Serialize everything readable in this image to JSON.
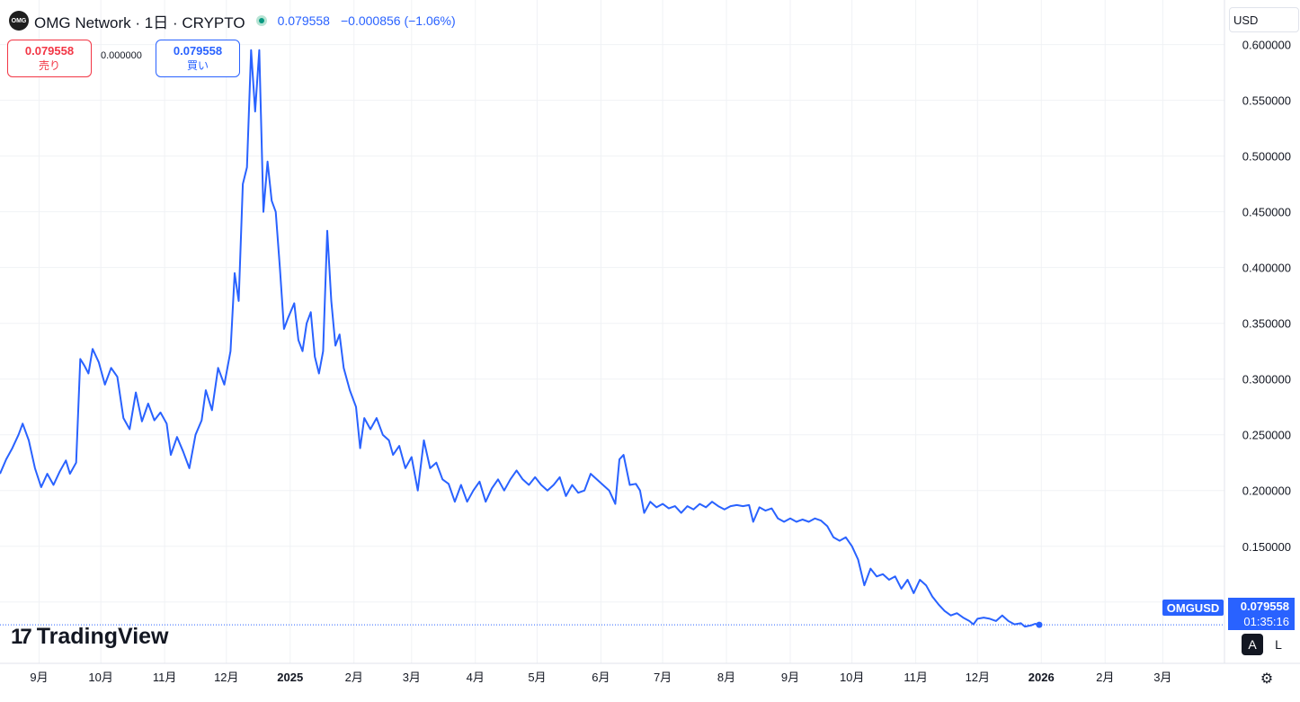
{
  "header": {
    "logo_text": "OMG",
    "title": "OMG Network · 1日 · CRYPTO",
    "last_price": "0.079558",
    "change": "−0.000856 (−1.06%)"
  },
  "trade": {
    "sell_price": "0.079558",
    "sell_label": "売り",
    "buy_price": "0.079558",
    "buy_label": "買い",
    "spread": "0.000000"
  },
  "currency": "USD",
  "price_label": {
    "symbol": "OMGUSD",
    "value": "0.079558",
    "countdown": "01:35:16"
  },
  "logo": {
    "mark": "17",
    "text": "TradingView"
  },
  "axis_buttons": {
    "a": "A",
    "l": "L"
  },
  "colors": {
    "line": "#2962ff",
    "grid": "#f0f2f5",
    "sell": "#f23645",
    "buy": "#2962ff"
  },
  "chart_data": {
    "type": "line",
    "series": [
      {
        "name": "OMGUSD",
        "points": [
          [
            "2024-08-13",
            0.215
          ],
          [
            "2024-08-16",
            0.228
          ],
          [
            "2024-08-19",
            0.238
          ],
          [
            "2024-08-22",
            0.25
          ],
          [
            "2024-08-24",
            0.26
          ],
          [
            "2024-08-27",
            0.245
          ],
          [
            "2024-08-30",
            0.22
          ],
          [
            "2024-09-02",
            0.203
          ],
          [
            "2024-09-05",
            0.215
          ],
          [
            "2024-09-08",
            0.205
          ],
          [
            "2024-09-11",
            0.217
          ],
          [
            "2024-09-14",
            0.227
          ],
          [
            "2024-09-16",
            0.215
          ],
          [
            "2024-09-19",
            0.225
          ],
          [
            "2024-09-21",
            0.318
          ],
          [
            "2024-09-23",
            0.312
          ],
          [
            "2024-09-25",
            0.305
          ],
          [
            "2024-09-27",
            0.327
          ],
          [
            "2024-09-30",
            0.315
          ],
          [
            "2024-10-03",
            0.295
          ],
          [
            "2024-10-06",
            0.31
          ],
          [
            "2024-10-09",
            0.302
          ],
          [
            "2024-10-12",
            0.265
          ],
          [
            "2024-10-15",
            0.255
          ],
          [
            "2024-10-18",
            0.288
          ],
          [
            "2024-10-21",
            0.262
          ],
          [
            "2024-10-24",
            0.278
          ],
          [
            "2024-10-27",
            0.263
          ],
          [
            "2024-10-30",
            0.27
          ],
          [
            "2024-11-02",
            0.26
          ],
          [
            "2024-11-04",
            0.232
          ],
          [
            "2024-11-07",
            0.248
          ],
          [
            "2024-11-10",
            0.235
          ],
          [
            "2024-11-13",
            0.22
          ],
          [
            "2024-11-16",
            0.25
          ],
          [
            "2024-11-19",
            0.263
          ],
          [
            "2024-11-21",
            0.29
          ],
          [
            "2024-11-24",
            0.272
          ],
          [
            "2024-11-27",
            0.31
          ],
          [
            "2024-11-30",
            0.295
          ],
          [
            "2024-12-03",
            0.325
          ],
          [
            "2024-12-05",
            0.395
          ],
          [
            "2024-12-07",
            0.37
          ],
          [
            "2024-12-09",
            0.475
          ],
          [
            "2024-12-11",
            0.49
          ],
          [
            "2024-12-13",
            0.595
          ],
          [
            "2024-12-15",
            0.54
          ],
          [
            "2024-12-17",
            0.595
          ],
          [
            "2024-12-19",
            0.45
          ],
          [
            "2024-12-21",
            0.495
          ],
          [
            "2024-12-23",
            0.46
          ],
          [
            "2024-12-25",
            0.45
          ],
          [
            "2024-12-27",
            0.4
          ],
          [
            "2024-12-29",
            0.345
          ],
          [
            "2024-12-31",
            0.355
          ],
          [
            "2025-01-03",
            0.368
          ],
          [
            "2025-01-05",
            0.335
          ],
          [
            "2025-01-07",
            0.325
          ],
          [
            "2025-01-09",
            0.35
          ],
          [
            "2025-01-11",
            0.36
          ],
          [
            "2025-01-13",
            0.32
          ],
          [
            "2025-01-15",
            0.305
          ],
          [
            "2025-01-17",
            0.325
          ],
          [
            "2025-01-19",
            0.433
          ],
          [
            "2025-01-21",
            0.37
          ],
          [
            "2025-01-23",
            0.33
          ],
          [
            "2025-01-25",
            0.34
          ],
          [
            "2025-01-27",
            0.31
          ],
          [
            "2025-01-30",
            0.29
          ],
          [
            "2025-02-02",
            0.275
          ],
          [
            "2025-02-04",
            0.238
          ],
          [
            "2025-02-06",
            0.265
          ],
          [
            "2025-02-09",
            0.255
          ],
          [
            "2025-02-12",
            0.265
          ],
          [
            "2025-02-15",
            0.25
          ],
          [
            "2025-02-18",
            0.245
          ],
          [
            "2025-02-20",
            0.232
          ],
          [
            "2025-02-23",
            0.24
          ],
          [
            "2025-02-26",
            0.22
          ],
          [
            "2025-03-01",
            0.23
          ],
          [
            "2025-03-04",
            0.2
          ],
          [
            "2025-03-07",
            0.245
          ],
          [
            "2025-03-10",
            0.22
          ],
          [
            "2025-03-13",
            0.225
          ],
          [
            "2025-03-16",
            0.21
          ],
          [
            "2025-03-19",
            0.206
          ],
          [
            "2025-03-22",
            0.19
          ],
          [
            "2025-03-25",
            0.205
          ],
          [
            "2025-03-28",
            0.19
          ],
          [
            "2025-03-31",
            0.2
          ],
          [
            "2025-04-03",
            0.208
          ],
          [
            "2025-04-06",
            0.19
          ],
          [
            "2025-04-09",
            0.202
          ],
          [
            "2025-04-12",
            0.21
          ],
          [
            "2025-04-15",
            0.2
          ],
          [
            "2025-04-18",
            0.21
          ],
          [
            "2025-04-21",
            0.218
          ],
          [
            "2025-04-24",
            0.21
          ],
          [
            "2025-04-27",
            0.205
          ],
          [
            "2025-04-30",
            0.212
          ],
          [
            "2025-05-03",
            0.205
          ],
          [
            "2025-05-06",
            0.2
          ],
          [
            "2025-05-09",
            0.205
          ],
          [
            "2025-05-12",
            0.212
          ],
          [
            "2025-05-15",
            0.195
          ],
          [
            "2025-05-18",
            0.205
          ],
          [
            "2025-05-21",
            0.198
          ],
          [
            "2025-05-24",
            0.2
          ],
          [
            "2025-05-27",
            0.215
          ],
          [
            "2025-05-30",
            0.21
          ],
          [
            "2025-06-02",
            0.205
          ],
          [
            "2025-06-05",
            0.2
          ],
          [
            "2025-06-08",
            0.188
          ],
          [
            "2025-06-10",
            0.228
          ],
          [
            "2025-06-12",
            0.232
          ],
          [
            "2025-06-15",
            0.205
          ],
          [
            "2025-06-18",
            0.206
          ],
          [
            "2025-06-20",
            0.2
          ],
          [
            "2025-06-22",
            0.18
          ],
          [
            "2025-06-25",
            0.19
          ],
          [
            "2025-06-28",
            0.185
          ],
          [
            "2025-07-01",
            0.188
          ],
          [
            "2025-07-04",
            0.184
          ],
          [
            "2025-07-07",
            0.186
          ],
          [
            "2025-07-10",
            0.18
          ],
          [
            "2025-07-13",
            0.186
          ],
          [
            "2025-07-16",
            0.183
          ],
          [
            "2025-07-19",
            0.188
          ],
          [
            "2025-07-22",
            0.185
          ],
          [
            "2025-07-25",
            0.19
          ],
          [
            "2025-07-28",
            0.186
          ],
          [
            "2025-07-31",
            0.183
          ],
          [
            "2025-08-03",
            0.186
          ],
          [
            "2025-08-06",
            0.187
          ],
          [
            "2025-08-09",
            0.186
          ],
          [
            "2025-08-12",
            0.187
          ],
          [
            "2025-08-14",
            0.172
          ],
          [
            "2025-08-17",
            0.185
          ],
          [
            "2025-08-20",
            0.182
          ],
          [
            "2025-08-23",
            0.184
          ],
          [
            "2025-08-26",
            0.175
          ],
          [
            "2025-08-29",
            0.172
          ],
          [
            "2025-09-01",
            0.175
          ],
          [
            "2025-09-04",
            0.172
          ],
          [
            "2025-09-07",
            0.174
          ],
          [
            "2025-09-10",
            0.172
          ],
          [
            "2025-09-13",
            0.175
          ],
          [
            "2025-09-16",
            0.173
          ],
          [
            "2025-09-19",
            0.168
          ],
          [
            "2025-09-22",
            0.158
          ],
          [
            "2025-09-25",
            0.155
          ],
          [
            "2025-09-28",
            0.158
          ],
          [
            "2025-10-01",
            0.15
          ],
          [
            "2025-10-04",
            0.138
          ],
          [
            "2025-10-07",
            0.115
          ],
          [
            "2025-10-10",
            0.13
          ],
          [
            "2025-10-13",
            0.123
          ],
          [
            "2025-10-16",
            0.125
          ],
          [
            "2025-10-19",
            0.12
          ],
          [
            "2025-10-22",
            0.123
          ],
          [
            "2025-10-25",
            0.112
          ],
          [
            "2025-10-28",
            0.12
          ],
          [
            "2025-10-31",
            0.108
          ],
          [
            "2025-11-03",
            0.12
          ],
          [
            "2025-11-06",
            0.115
          ],
          [
            "2025-11-09",
            0.105
          ],
          [
            "2025-11-12",
            0.098
          ],
          [
            "2025-11-15",
            0.092
          ],
          [
            "2025-11-18",
            0.088
          ],
          [
            "2025-11-21",
            0.09
          ],
          [
            "2025-11-24",
            0.086
          ],
          [
            "2025-11-27",
            0.083
          ],
          [
            "2025-11-29",
            0.08
          ],
          [
            "2025-12-01",
            0.085
          ],
          [
            "2025-12-04",
            0.086
          ],
          [
            "2025-12-07",
            0.085
          ],
          [
            "2025-12-10",
            0.083
          ],
          [
            "2025-12-13",
            0.088
          ],
          [
            "2025-12-16",
            0.083
          ],
          [
            "2025-12-19",
            0.08
          ],
          [
            "2025-12-22",
            0.081
          ],
          [
            "2025-12-24",
            0.078
          ],
          [
            "2025-12-27",
            0.079
          ],
          [
            "2025-12-29",
            0.0805
          ],
          [
            "2025-12-31",
            0.079558
          ]
        ]
      }
    ],
    "x_ticks": [
      "9月",
      "10月",
      "11月",
      "12月",
      "2025",
      "2月",
      "3月",
      "4月",
      "5月",
      "6月",
      "7月",
      "8月",
      "9月",
      "10月",
      "11月",
      "12月",
      "2026",
      "2月",
      "3月"
    ],
    "x_tick_dates": [
      "2024-09-01",
      "2024-10-01",
      "2024-11-01",
      "2024-12-01",
      "2025-01-01",
      "2025-02-01",
      "2025-03-01",
      "2025-04-01",
      "2025-05-01",
      "2025-06-01",
      "2025-07-01",
      "2025-08-01",
      "2025-09-01",
      "2025-10-01",
      "2025-11-01",
      "2025-12-01",
      "2026-01-01",
      "2026-02-01",
      "2026-03-01"
    ],
    "x_range": [
      "2024-08-13",
      "2026-03-31"
    ],
    "y_ticks": [
      "0.600000",
      "0.550000",
      "0.500000",
      "0.450000",
      "0.400000",
      "0.350000",
      "0.300000",
      "0.250000",
      "0.200000",
      "0.150000",
      "0.100000"
    ],
    "ylim": [
      0.045,
      0.64
    ],
    "last_value": 0.079558,
    "grid": true
  }
}
